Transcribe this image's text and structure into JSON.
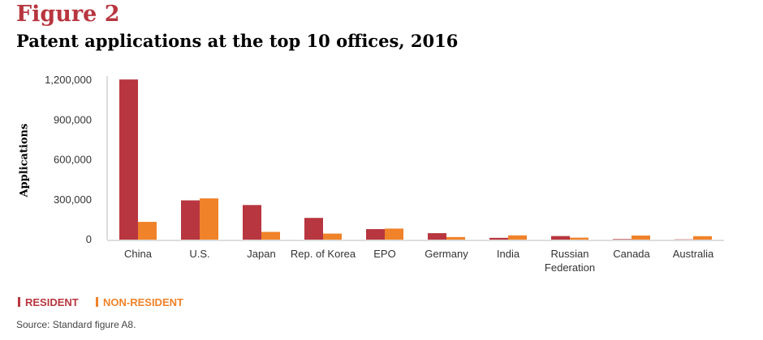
{
  "figure_label": "Figure 2",
  "chart_data": {
    "type": "bar",
    "title": "Patent applications at the top 10 offices, 2016",
    "xlabel": "",
    "ylabel": "Applications",
    "ylim": [
      0,
      1200000
    ],
    "yticks": [
      "0",
      "300,000",
      "600,000",
      "900,000",
      "1,200,000"
    ],
    "ytick_values": [
      0,
      300000,
      600000,
      900000,
      1200000
    ],
    "grid": false,
    "legend_position": "bottom-left",
    "categories": [
      "China",
      "U.S.",
      "Japan",
      "Rep. of Korea",
      "EPO",
      "Germany",
      "India",
      "Russian Federation",
      "Canada",
      "Australia"
    ],
    "series": [
      {
        "name": "RESIDENT",
        "color": "#b8363f",
        "values": [
          1204981,
          295327,
          260244,
          163424,
          79000,
          48480,
          13219,
          26795,
          4078,
          2000
        ]
      },
      {
        "name": "NON-RESIDENT",
        "color": "#f0822a",
        "values": [
          133522,
          310244,
          58215,
          45437,
          83000,
          19419,
          32000,
          14792,
          30667,
          26000
        ]
      }
    ]
  },
  "source": "Source: Standard figure A8."
}
